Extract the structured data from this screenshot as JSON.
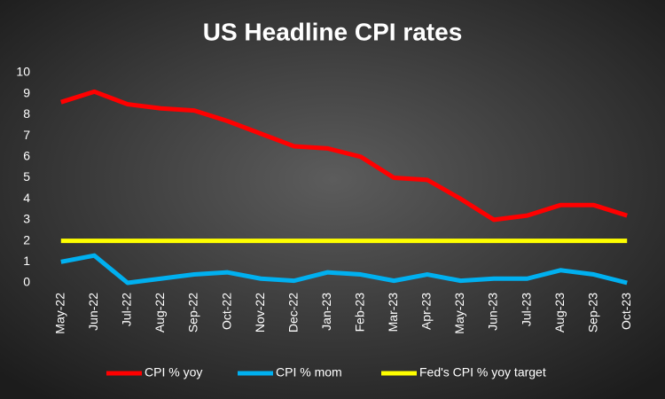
{
  "chart_data": {
    "type": "line",
    "title": "US Headline CPI rates",
    "categories": [
      "May-22",
      "Jun-22",
      "Jul-22",
      "Aug-22",
      "Sep-22",
      "Oct-22",
      "Nov-22",
      "Dec-22",
      "Jan-23",
      "Feb-23",
      "Mar-23",
      "Apr-23",
      "May-23",
      "Jun-23",
      "Jul-23",
      "Aug-23",
      "Sep-23",
      "Oct-23"
    ],
    "series": [
      {
        "name": "CPI % yoy",
        "color": "#ff0000",
        "values": [
          8.6,
          9.1,
          8.5,
          8.3,
          8.2,
          7.7,
          7.1,
          6.5,
          6.4,
          6.0,
          5.0,
          4.9,
          4.0,
          3.0,
          3.2,
          3.7,
          3.7,
          3.2
        ]
      },
      {
        "name": "CPI % mom",
        "color": "#00b0f0",
        "values": [
          1.0,
          1.3,
          0.0,
          0.2,
          0.4,
          0.5,
          0.2,
          0.1,
          0.5,
          0.4,
          0.1,
          0.4,
          0.1,
          0.2,
          0.2,
          0.6,
          0.4,
          0.0
        ]
      },
      {
        "name": "Fed's CPI % yoy target",
        "color": "#ffff00",
        "values": [
          2,
          2,
          2,
          2,
          2,
          2,
          2,
          2,
          2,
          2,
          2,
          2,
          2,
          2,
          2,
          2,
          2,
          2
        ]
      }
    ],
    "ylim": [
      0,
      10
    ],
    "yticks": [
      0,
      1,
      2,
      3,
      4,
      5,
      6,
      7,
      8,
      9,
      10
    ],
    "grid": false,
    "legend": "bottom"
  }
}
